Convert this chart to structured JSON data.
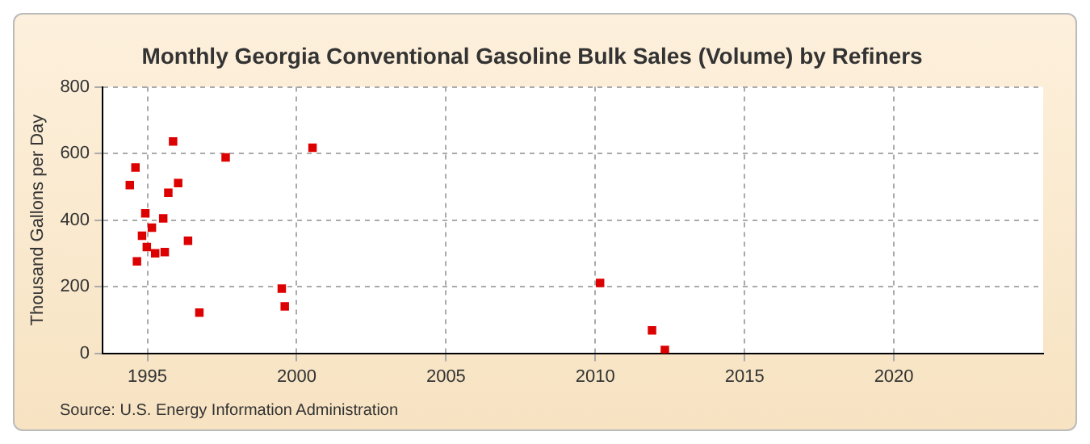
{
  "chart_data": {
    "type": "scatter",
    "title": "Monthly Georgia Conventional Gasoline Bulk Sales (Volume) by Refiners",
    "ylabel": "Thousand Gallons per Day",
    "annotations": [
      "Source: U.S. Energy Information Administration"
    ],
    "x": [
      1994.41,
      1994.6,
      1994.65,
      1994.82,
      1994.93,
      1994.98,
      1995.15,
      1995.26,
      1995.53,
      1995.58,
      1995.7,
      1995.86,
      1996.03,
      1996.36,
      1996.74,
      1997.62,
      1999.5,
      1999.6,
      2000.53,
      2010.16,
      2011.9,
      2012.33
    ],
    "series": [
      {
        "color": "#dd0000",
        "values": [
          505,
          558,
          276,
          353,
          420,
          319,
          377,
          300,
          405,
          304,
          482,
          636,
          511,
          338,
          122,
          588,
          194,
          141,
          617,
          211,
          69,
          10
        ]
      }
    ],
    "xlim": [
      1993.5,
      2025
    ],
    "xticks": [
      1995,
      2000,
      2005,
      2010,
      2015,
      2020
    ],
    "ylim": [
      0,
      800
    ],
    "yticks": [
      0,
      200,
      400,
      600,
      800
    ],
    "grid": true,
    "marker": "square",
    "legend": false
  }
}
